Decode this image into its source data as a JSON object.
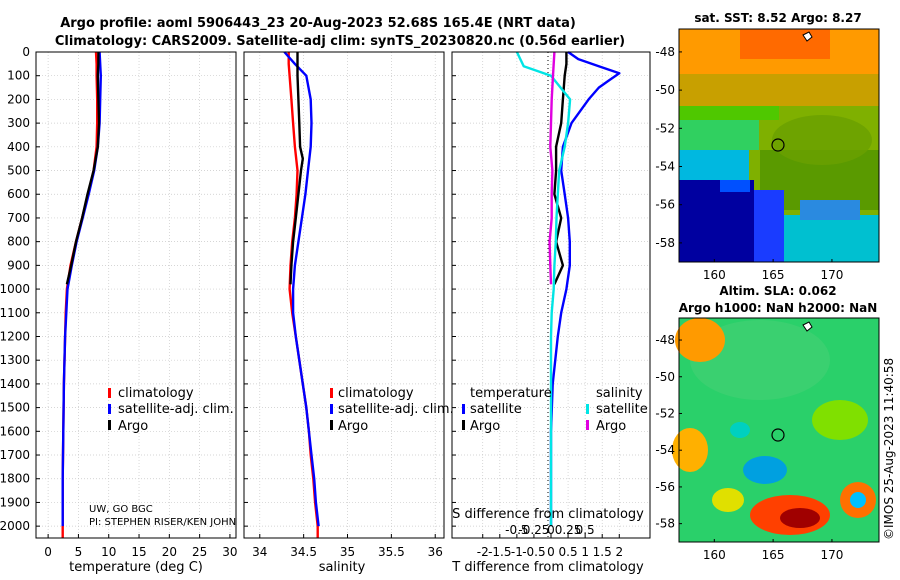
{
  "title": {
    "line1": "Argo profile: aoml 5906443_23 20-Aug-2023 52.68S 165.4E (NRT data)",
    "line2": "Climatology: CARS2009. Satellite-adj clim: synTS_20230820.nc (0.56d earlier)"
  },
  "colors": {
    "climatology": "#ff0000",
    "satellite": "#0000ff",
    "argo": "#000000",
    "sat_salinity": "#00e5e5",
    "argo_salinity": "#e000e0"
  },
  "depth_ticks": [
    "0",
    "100",
    "200",
    "300",
    "400",
    "500",
    "600",
    "700",
    "800",
    "900",
    "1000",
    "1100",
    "1200",
    "1300",
    "1400",
    "1500",
    "1600",
    "1700",
    "1800",
    "1900",
    "2000"
  ],
  "panel_temperature": {
    "xlabel": "temperature (deg C)",
    "xticks": [
      "0",
      "5",
      "10",
      "15",
      "20",
      "25",
      "30"
    ],
    "legend": [
      "climatology",
      "satellite-adj. clim.",
      "Argo"
    ],
    "credit1": "UW, GO BGC",
    "credit2": "PI: STEPHEN RISER/KEN JOHN"
  },
  "panel_salinity": {
    "xlabel": "salinity",
    "xticks": [
      "34",
      "34.5",
      "35",
      "35.5",
      "36"
    ],
    "legend": [
      "climatology",
      "satellite-adj. clim.",
      "Argo"
    ]
  },
  "panel_difference": {
    "xlabel": "T difference from climatology",
    "top_label": "S difference from climatology",
    "xticks": [
      "-2",
      "-1.5",
      "-1",
      "-0.5",
      "0",
      "0.5",
      "1",
      "1.5",
      "2"
    ],
    "sticks": [
      "-0.5",
      "-0.25",
      "0",
      "0.25",
      "0.5"
    ],
    "legend_temp_header": "temperature",
    "legend_sal_header": "salinity",
    "legend_temp": [
      "satellite",
      "Argo"
    ],
    "legend_sal": [
      "satellite",
      "Argo"
    ]
  },
  "map_sst": {
    "title": "sat. SST: 8.52 Argo: 8.27",
    "yticks": [
      "-48",
      "-50",
      "-52",
      "-54",
      "-56",
      "-58"
    ],
    "xticks": [
      "160",
      "165",
      "170"
    ]
  },
  "map_sla": {
    "title1": "Altim. SLA: 0.062",
    "title2": "Argo h1000: NaN h2000: NaN",
    "yticks": [
      "-48",
      "-50",
      "-52",
      "-54",
      "-56",
      "-58"
    ],
    "xticks": [
      "160",
      "165",
      "170"
    ]
  },
  "stamp": "©IMOS 25-Aug-2023 11:40:58",
  "chart_data": [
    {
      "type": "line",
      "title": "temperature",
      "xlabel": "temperature (deg C)",
      "ylabel": "depth",
      "xlim": [
        -2,
        31
      ],
      "ylim": [
        2050,
        0
      ],
      "series": [
        {
          "name": "climatology",
          "depth": [
            0,
            50,
            100,
            200,
            300,
            400,
            500,
            600,
            700,
            800,
            900,
            1000,
            1100,
            1200,
            1400,
            1600,
            1800,
            2000,
            2050
          ],
          "values": [
            7.9,
            8.0,
            8.0,
            8.1,
            8.1,
            8.0,
            7.5,
            6.6,
            5.6,
            4.6,
            3.7,
            3.1,
            2.9,
            2.8,
            2.6,
            2.5,
            2.4,
            2.4,
            2.4
          ]
        },
        {
          "name": "satellite-adj. clim.",
          "depth": [
            0,
            50,
            100,
            200,
            300,
            400,
            500,
            600,
            700,
            800,
            900,
            1000,
            1100,
            1200,
            1400,
            1600,
            1800,
            2000
          ],
          "values": [
            8.5,
            8.6,
            8.7,
            8.6,
            8.5,
            8.2,
            7.6,
            6.7,
            5.7,
            4.7,
            3.9,
            3.2,
            3.0,
            2.8,
            2.6,
            2.5,
            2.4,
            2.4
          ]
        },
        {
          "name": "Argo",
          "depth": [
            0,
            50,
            100,
            200,
            300,
            400,
            500,
            600,
            700,
            800,
            900,
            980
          ],
          "values": [
            8.3,
            8.3,
            8.2,
            8.3,
            8.4,
            8.2,
            7.5,
            6.5,
            5.6,
            4.6,
            3.8,
            3.1
          ]
        }
      ]
    },
    {
      "type": "line",
      "title": "salinity",
      "xlabel": "salinity",
      "ylabel": "depth",
      "xlim": [
        33.82,
        36.1
      ],
      "ylim": [
        2050,
        0
      ],
      "series": [
        {
          "name": "climatology",
          "depth": [
            0,
            50,
            100,
            200,
            300,
            400,
            500,
            600,
            700,
            800,
            900,
            1000,
            1100,
            1200,
            1300,
            1400,
            1500,
            1600,
            1700,
            1800,
            1900,
            2000,
            2050
          ],
          "values": [
            34.33,
            34.33,
            34.34,
            34.36,
            34.38,
            34.4,
            34.43,
            34.42,
            34.4,
            34.37,
            34.35,
            34.34,
            34.37,
            34.41,
            34.45,
            34.49,
            34.53,
            34.56,
            34.58,
            34.61,
            34.63,
            34.66,
            34.66
          ]
        },
        {
          "name": "satellite-adj. clim.",
          "depth": [
            0,
            50,
            100,
            200,
            300,
            400,
            500,
            600,
            700,
            800,
            900,
            1000,
            1100,
            1200,
            1300,
            1400,
            1500,
            1600,
            1700,
            1800,
            1900,
            2000
          ],
          "values": [
            34.28,
            34.4,
            34.53,
            34.58,
            34.59,
            34.58,
            34.55,
            34.52,
            34.48,
            34.44,
            34.4,
            34.38,
            34.38,
            34.41,
            34.45,
            34.49,
            34.53,
            34.56,
            34.59,
            34.62,
            34.64,
            34.67
          ]
        },
        {
          "name": "Argo",
          "depth": [
            0,
            50,
            100,
            200,
            300,
            400,
            450,
            500,
            600,
            700,
            800,
            900,
            980
          ],
          "values": [
            34.43,
            34.43,
            34.43,
            34.44,
            34.45,
            34.46,
            34.49,
            34.47,
            34.44,
            34.41,
            34.38,
            34.36,
            34.35
          ]
        }
      ]
    },
    {
      "type": "line",
      "title": "difference from climatology",
      "xlabel": "T difference from climatology",
      "x2label": "S difference from climatology",
      "ylabel": "depth",
      "xlim": [
        -2.9,
        2.9
      ],
      "ylim": [
        2050,
        0
      ],
      "series": [
        {
          "name": "temperature satellite",
          "depth": [
            0,
            30,
            60,
            90,
            120,
            150,
            200,
            300,
            400,
            500,
            600,
            700,
            800,
            900,
            1000,
            1100,
            1200,
            1400,
            1600,
            1800,
            2000
          ],
          "values": [
            0.5,
            0.8,
            1.4,
            2.0,
            1.7,
            1.4,
            1.1,
            0.6,
            0.35,
            0.3,
            0.4,
            0.5,
            0.55,
            0.55,
            0.45,
            0.3,
            0.2,
            0.05,
            0.0,
            0.0,
            0.0
          ]
        },
        {
          "name": "temperature Argo",
          "depth": [
            0,
            50,
            100,
            200,
            300,
            400,
            500,
            600,
            700,
            800,
            900,
            980
          ],
          "values": [
            0.45,
            0.45,
            0.4,
            0.35,
            0.3,
            0.15,
            0.15,
            0.1,
            0.3,
            0.15,
            0.35,
            0.1
          ]
        },
        {
          "name": "salinity satellite",
          "depth": [
            0,
            30,
            60,
            100,
            200,
            300,
            400,
            500,
            600,
            700,
            800,
            900,
            1000,
            1100,
            1200,
            1400,
            1600,
            1800,
            2000
          ],
          "values": [
            -0.5,
            -0.45,
            -0.4,
            0.0,
            0.28,
            0.25,
            0.2,
            0.12,
            0.1,
            0.08,
            0.07,
            0.05,
            0.04,
            0.01,
            0.0,
            0.0,
            0.0,
            0.0,
            0.0
          ]
        },
        {
          "name": "salinity Argo",
          "depth": [
            0,
            100,
            200,
            300,
            400,
            500,
            600,
            700,
            800,
            900,
            980
          ],
          "values": [
            0.05,
            0.03,
            0.01,
            0.0,
            -0.01,
            0.02,
            0.01,
            0.01,
            -0.02,
            -0.01,
            0.0
          ]
        }
      ]
    },
    {
      "type": "heatmap",
      "title": "sat. SST: 8.52 Argo: 8.27",
      "xlim": [
        157,
        174
      ],
      "ylim": [
        -59,
        -46.8
      ],
      "marker": {
        "lon": 165.4,
        "lat": -52.68
      }
    },
    {
      "type": "heatmap",
      "title": "Altim. SLA: 0.062 / Argo h1000: NaN h2000: NaN",
      "xlim": [
        157,
        174
      ],
      "ylim": [
        -59,
        -46.8
      ],
      "marker": {
        "lon": 165.4,
        "lat": -52.68
      }
    }
  ]
}
